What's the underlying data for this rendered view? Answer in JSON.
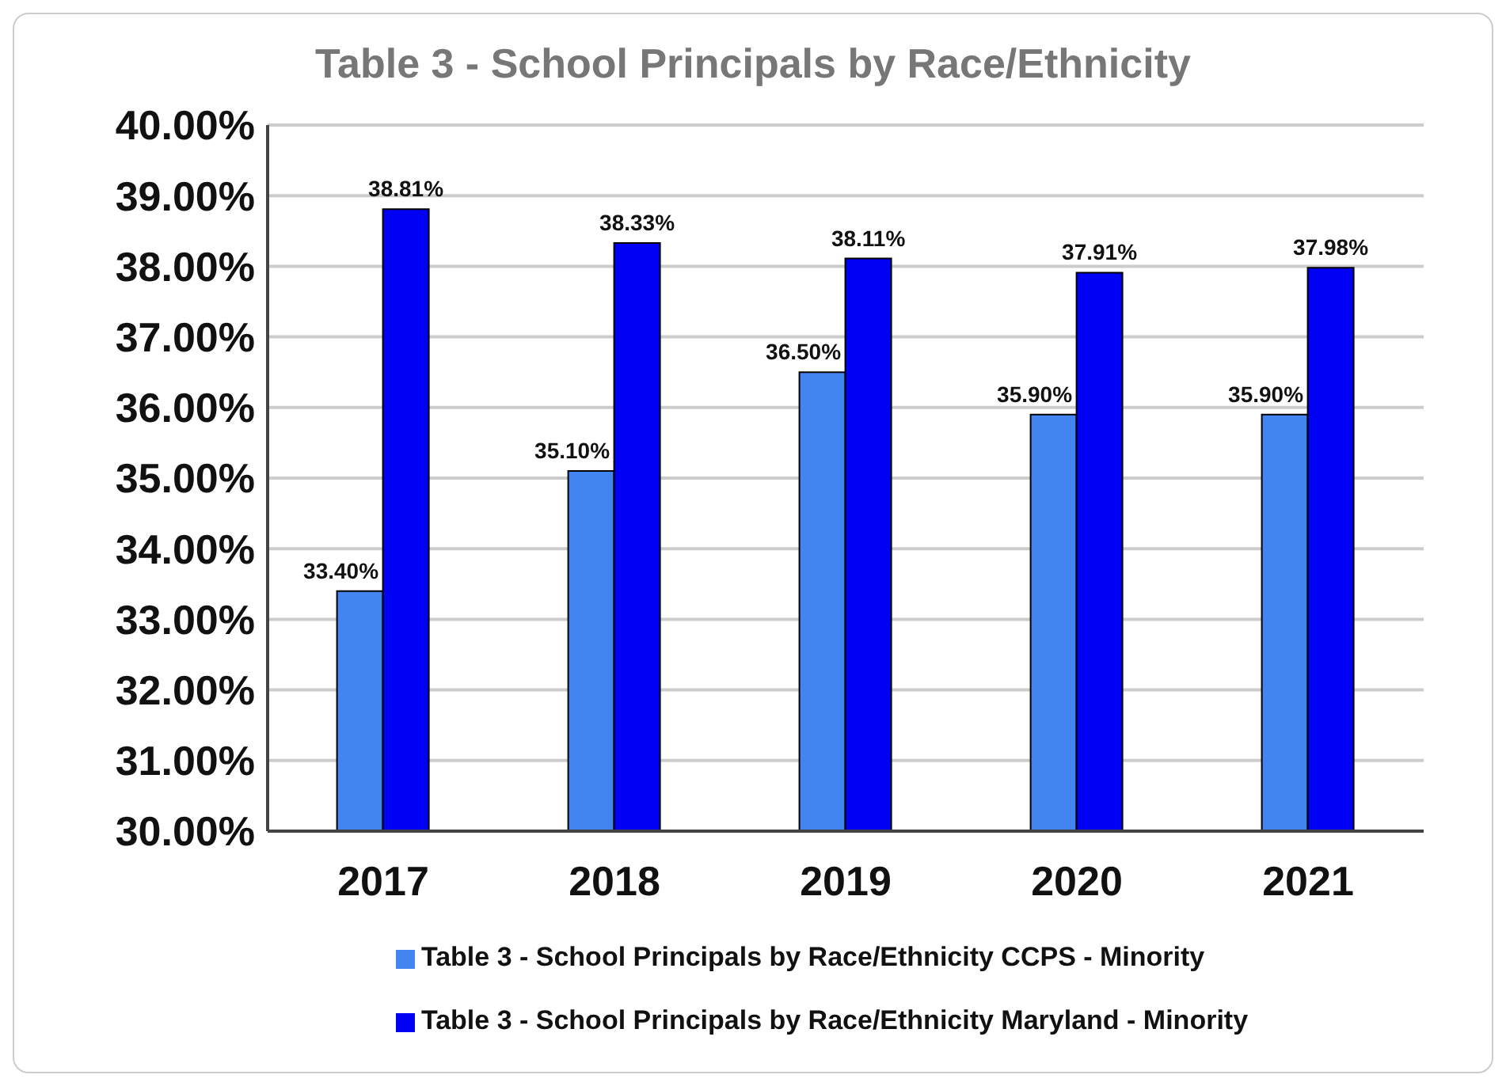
{
  "chart_data": {
    "type": "bar",
    "title": "Table 3 - School Principals by Race/Ethnicity",
    "categories": [
      "2017",
      "2018",
      "2019",
      "2020",
      "2021"
    ],
    "series": [
      {
        "name": "Table 3 - School Principals by Race/Ethnicity CCPS - Minority",
        "color": "#4285f0",
        "values": [
          33.4,
          35.1,
          36.5,
          35.9,
          35.9
        ],
        "value_labels": [
          "33.40%",
          "35.10%",
          "36.50%",
          "35.90%",
          "35.90%"
        ]
      },
      {
        "name": "Table 3 - School Principals by Race/Ethnicity Maryland - Minority",
        "color": "#0000f5",
        "values": [
          38.81,
          38.33,
          38.11,
          37.91,
          37.98
        ],
        "value_labels": [
          "38.81%",
          "38.33%",
          "38.11%",
          "37.91%",
          "37.98%"
        ]
      }
    ],
    "ylim": [
      30,
      40
    ],
    "yticks": [
      {
        "value": 30,
        "label": "30.00%"
      },
      {
        "value": 31,
        "label": "31.00%"
      },
      {
        "value": 32,
        "label": "32.00%"
      },
      {
        "value": 33,
        "label": "33.00%"
      },
      {
        "value": 34,
        "label": "34.00%"
      },
      {
        "value": 35,
        "label": "35.00%"
      },
      {
        "value": 36,
        "label": "36.00%"
      },
      {
        "value": 37,
        "label": "37.00%"
      },
      {
        "value": 38,
        "label": "38.00%"
      },
      {
        "value": 39,
        "label": "39.00%"
      },
      {
        "value": 40,
        "label": "40.00%"
      }
    ],
    "grid": "y",
    "legend": "bottom"
  }
}
